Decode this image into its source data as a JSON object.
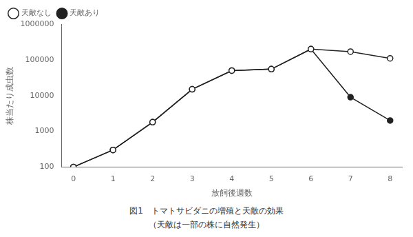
{
  "chart_data": {
    "type": "line",
    "x": [
      0,
      1,
      2,
      3,
      4,
      5,
      6,
      7,
      8
    ],
    "series": [
      {
        "name": "天敵なし",
        "color": "#222222",
        "marker": "circle_open",
        "values": [
          100,
          300,
          1800,
          15000,
          50000,
          55000,
          200000,
          170000,
          110000
        ]
      },
      {
        "name": "天敵あり",
        "color": "#222222",
        "marker": "circle",
        "values": [
          100,
          300,
          1800,
          15000,
          50000,
          55000,
          200000,
          9000,
          2000
        ]
      }
    ],
    "x_label": "放飼後週数",
    "y_label": "株当たり成虫数",
    "annotations": [
      "図1　トマトサビダニの増殖と天敵の効果",
      "（天敵は一部の株に自然発生）"
    ],
    "log": "y",
    "xlim": [
      -0.3,
      8.3
    ],
    "xticks": [
      0,
      1,
      2,
      3,
      4,
      5,
      6,
      7,
      8
    ],
    "ylim": [
      100,
      1000000
    ],
    "yticks": [
      100,
      1000,
      10000,
      100000,
      1000000
    ],
    "grid": false,
    "legend": "upper left"
  }
}
